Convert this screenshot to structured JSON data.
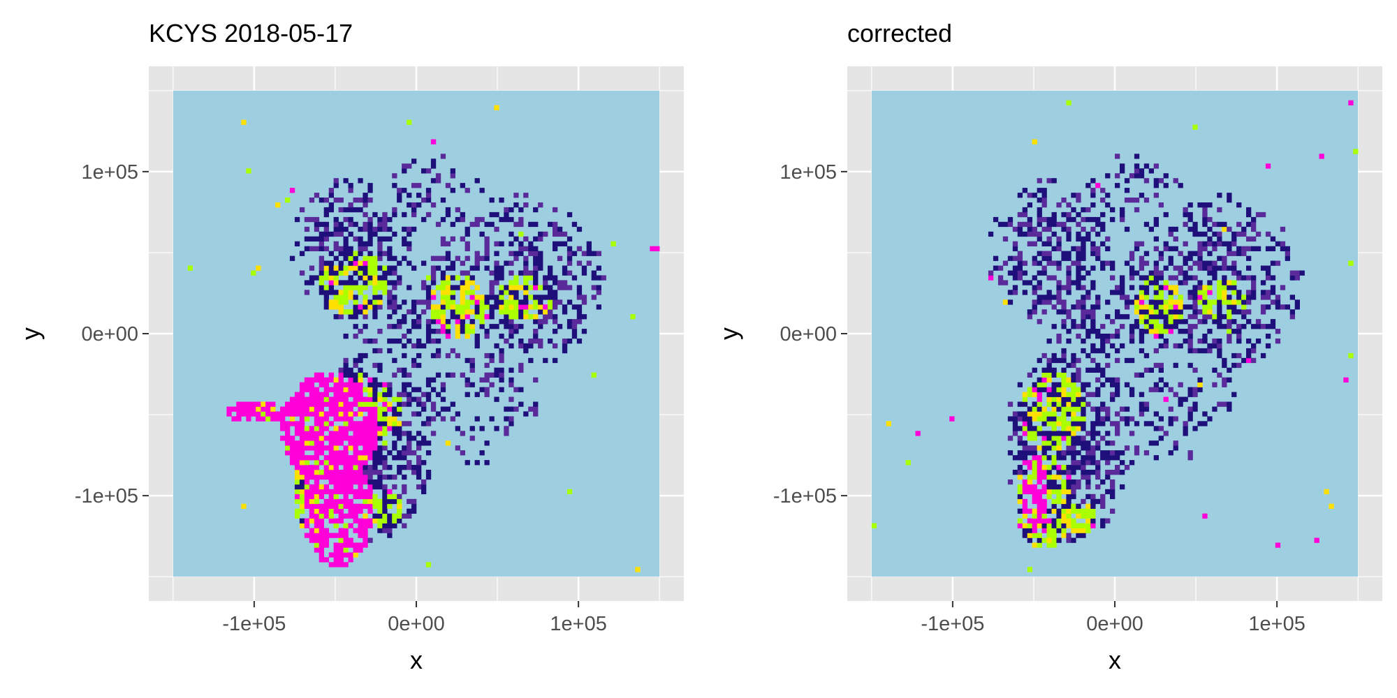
{
  "chart_data": [
    {
      "type": "heatmap",
      "title": "KCYS 2018-05-17",
      "xlabel": "x",
      "ylabel": "y",
      "xlim": [
        -165000,
        165000
      ],
      "ylim": [
        -165000,
        165000
      ],
      "raster_extent": {
        "x": [
          -150000,
          150000
        ],
        "y": [
          -150000,
          150000
        ]
      },
      "xticks": [
        {
          "value": -100000,
          "label": "-1e+05"
        },
        {
          "value": 0,
          "label": "0e+00"
        },
        {
          "value": 100000,
          "label": "1e+05"
        }
      ],
      "yticks": [
        {
          "value": 100000,
          "label": "1e+05"
        },
        {
          "value": 0,
          "label": "0e+00"
        },
        {
          "value": -100000,
          "label": "-1e+05"
        }
      ],
      "grid": true,
      "legend": "none",
      "colors": {
        "background": "#9ecfe0",
        "low": "#1e0f7a",
        "mid": "#5a2a9a",
        "high": "#aaff00",
        "higher": "#ffe000",
        "peak": "#ff00d8",
        "panel": "#e5e5e5"
      },
      "echo_regions": [
        {
          "cx": -40000,
          "cy": 30000,
          "rx": 22000,
          "ry": 20000,
          "level": "high"
        },
        {
          "cx": 25000,
          "cy": 15000,
          "rx": 18000,
          "ry": 20000,
          "level": "high"
        },
        {
          "cx": 65000,
          "cy": 20000,
          "rx": 18000,
          "ry": 14000,
          "level": "high"
        },
        {
          "cx": -20000,
          "cy": -110000,
          "rx": 10000,
          "ry": 12000,
          "level": "high"
        },
        {
          "cx": -40000,
          "cy": -50000,
          "rx": 30000,
          "ry": 25000,
          "level": "high"
        },
        {
          "cx": -55000,
          "cy": -100000,
          "rx": 22000,
          "ry": 35000,
          "level": "high"
        },
        {
          "cx": -55000,
          "cy": -60000,
          "rx": 30000,
          "ry": 35000,
          "level": "peak"
        },
        {
          "cx": -50000,
          "cy": -110000,
          "rx": 22000,
          "ry": 35000,
          "level": "peak"
        },
        {
          "cx": -95000,
          "cy": -50000,
          "rx": 25000,
          "ry": 7000,
          "level": "peak"
        }
      ]
    },
    {
      "type": "heatmap",
      "title": "corrected",
      "xlabel": "x",
      "ylabel": "y",
      "xlim": [
        -165000,
        165000
      ],
      "ylim": [
        -165000,
        165000
      ],
      "raster_extent": {
        "x": [
          -150000,
          150000
        ],
        "y": [
          -150000,
          150000
        ]
      },
      "xticks": [
        {
          "value": -100000,
          "label": "-1e+05"
        },
        {
          "value": 0,
          "label": "0e+00"
        },
        {
          "value": 100000,
          "label": "1e+05"
        }
      ],
      "yticks": [
        {
          "value": 100000,
          "label": "1e+05"
        },
        {
          "value": 0,
          "label": "0e+00"
        },
        {
          "value": -100000,
          "label": "-1e+05"
        }
      ],
      "grid": true,
      "legend": "none",
      "colors": {
        "background": "#9ecfe0",
        "low": "#1e0f7a",
        "mid": "#5a2a9a",
        "high": "#aaff00",
        "higher": "#ffe000",
        "peak": "#ff00d8",
        "panel": "#e5e5e5"
      },
      "echo_regions": [
        {
          "cx": 25000,
          "cy": 15000,
          "rx": 16000,
          "ry": 18000,
          "level": "high"
        },
        {
          "cx": 65000,
          "cy": 20000,
          "rx": 16000,
          "ry": 12000,
          "level": "high"
        },
        {
          "cx": -40000,
          "cy": -50000,
          "rx": 20000,
          "ry": 25000,
          "level": "high"
        },
        {
          "cx": -45000,
          "cy": -105000,
          "rx": 18000,
          "ry": 30000,
          "level": "high"
        },
        {
          "cx": -22000,
          "cy": -115000,
          "rx": 9000,
          "ry": 10000,
          "level": "high"
        },
        {
          "cx": -50000,
          "cy": -100000,
          "rx": 8000,
          "ry": 25000,
          "level": "peak"
        }
      ]
    }
  ]
}
